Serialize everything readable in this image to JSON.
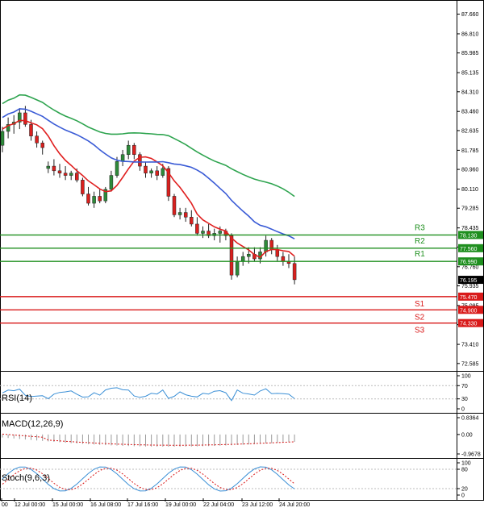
{
  "colors": {
    "bull": "#2e8b3a",
    "bear": "#d9201e",
    "ma_fast": "#e01f1f",
    "ma_mid": "#3a5bd6",
    "ma_slow": "#2ea44f",
    "resistance": "#1f8f1f",
    "support": "#d91a1a",
    "indicator": "#3a8fd6",
    "macd_signal": "#d91a1a",
    "stoch_main": "#3a8fd6",
    "stoch_signal": "#d91a1a",
    "grid": "#e6e6e6"
  },
  "price_axis": {
    "ticks": [
      "87.660",
      "86.810",
      "85.985",
      "85.135",
      "84.310",
      "83.460",
      "82.635",
      "81.785",
      "80.960",
      "80.110",
      "79.285",
      "78.435",
      "77.610",
      "76.760",
      "75.935",
      "75.085",
      "74.260",
      "73.410",
      "72.585"
    ]
  },
  "price_tags": [
    {
      "text": "78.130",
      "kind": "resistance"
    },
    {
      "text": "77.560",
      "kind": "resistance"
    },
    {
      "text": "76.990",
      "kind": "resistance"
    },
    {
      "text": "76.195",
      "kind": "current"
    },
    {
      "text": "75.470",
      "kind": "support"
    },
    {
      "text": "74.900",
      "kind": "support"
    },
    {
      "text": "74.330",
      "kind": "support"
    }
  ],
  "levels": [
    {
      "label": "R3",
      "value": 78.13,
      "kind": "resistance"
    },
    {
      "label": "R2",
      "value": 77.56,
      "kind": "resistance"
    },
    {
      "label": "R1",
      "value": 76.99,
      "kind": "resistance"
    },
    {
      "label": "S1",
      "value": 75.47,
      "kind": "support"
    },
    {
      "label": "S2",
      "value": 74.9,
      "kind": "support"
    },
    {
      "label": "S3",
      "value": 74.33,
      "kind": "support"
    }
  ],
  "time_axis": {
    "labels": [
      "00",
      "12 Jul 00:00",
      "15 Jul 00:00",
      "16 Jul 08:00",
      "17 Jul 16:00",
      "19 Jul 00:00",
      "22 Jul 04:00",
      "23 Jul 12:00",
      "24 Jul 20:00"
    ]
  },
  "panels": {
    "rsi": {
      "title": "RSI(14)",
      "ticks": [
        "100",
        "70",
        "30",
        "0"
      ]
    },
    "macd": {
      "title": "MACD(12,26,9)",
      "ticks": [
        "0.8364",
        "0.00",
        "-0.9678"
      ]
    },
    "stoch": {
      "title": "Stoch(9,6,3)",
      "ticks": [
        "100",
        "80",
        "20",
        "0"
      ]
    }
  },
  "chart_data": {
    "type": "candlestick",
    "y_range": [
      72.3,
      88.2
    ],
    "current_price": 76.195,
    "ohlc": [
      [
        82.0,
        82.8,
        81.7,
        82.6
      ],
      [
        82.6,
        83.2,
        82.3,
        82.9
      ],
      [
        82.9,
        83.3,
        82.5,
        83.0
      ],
      [
        83.0,
        83.6,
        82.7,
        83.4
      ],
      [
        83.4,
        83.7,
        82.8,
        82.9
      ],
      [
        82.9,
        83.1,
        82.2,
        82.4
      ],
      [
        82.4,
        82.6,
        81.9,
        82.1
      ],
      [
        82.1,
        82.2,
        81.6,
        81.9
      ],
      [
        81.0,
        81.3,
        80.8,
        81.1
      ],
      [
        81.1,
        81.4,
        80.7,
        80.9
      ],
      [
        80.9,
        81.2,
        80.6,
        80.8
      ],
      [
        80.8,
        81.1,
        80.5,
        80.7
      ],
      [
        80.7,
        80.9,
        80.5,
        80.8
      ],
      [
        80.8,
        81.0,
        80.4,
        80.5
      ],
      [
        80.5,
        80.6,
        79.8,
        79.9
      ],
      [
        79.9,
        80.2,
        79.4,
        79.5
      ],
      [
        79.5,
        80.0,
        79.3,
        79.8
      ],
      [
        79.8,
        80.1,
        79.5,
        79.6
      ],
      [
        79.6,
        80.2,
        79.5,
        80.1
      ],
      [
        80.1,
        80.9,
        80.0,
        80.7
      ],
      [
        80.7,
        81.5,
        80.6,
        81.3
      ],
      [
        81.3,
        81.8,
        81.1,
        81.6
      ],
      [
        81.6,
        82.2,
        81.4,
        82.0
      ],
      [
        82.0,
        82.1,
        81.4,
        81.6
      ],
      [
        81.6,
        81.7,
        80.9,
        81.1
      ],
      [
        81.1,
        81.3,
        80.6,
        80.8
      ],
      [
        80.8,
        81.0,
        80.6,
        80.9
      ],
      [
        80.9,
        81.1,
        80.5,
        80.7
      ],
      [
        80.7,
        81.2,
        80.6,
        81.0
      ],
      [
        81.0,
        81.1,
        79.6,
        79.8
      ],
      [
        79.8,
        79.9,
        78.9,
        79.0
      ],
      [
        79.0,
        79.3,
        78.8,
        79.1
      ],
      [
        79.1,
        79.3,
        78.7,
        78.9
      ],
      [
        78.9,
        79.2,
        78.5,
        78.6
      ],
      [
        78.6,
        78.9,
        78.1,
        78.2
      ],
      [
        78.2,
        78.5,
        78.0,
        78.3
      ],
      [
        78.3,
        78.6,
        78.0,
        78.1
      ],
      [
        78.1,
        78.4,
        77.9,
        78.2
      ],
      [
        78.2,
        78.5,
        77.8,
        78.3
      ],
      [
        78.3,
        78.4,
        77.9,
        78.1
      ],
      [
        78.1,
        78.2,
        76.2,
        76.4
      ],
      [
        76.4,
        77.2,
        76.3,
        77.0
      ],
      [
        77.0,
        77.4,
        76.8,
        77.2
      ],
      [
        77.2,
        77.6,
        76.9,
        77.3
      ],
      [
        77.3,
        77.6,
        77.0,
        77.1
      ],
      [
        77.1,
        77.6,
        76.9,
        77.4
      ],
      [
        77.4,
        78.1,
        77.2,
        77.9
      ],
      [
        77.9,
        78.0,
        77.3,
        77.5
      ],
      [
        77.5,
        77.7,
        77.0,
        77.2
      ],
      [
        77.2,
        77.4,
        76.8,
        77.0
      ],
      [
        77.0,
        77.3,
        76.7,
        76.9
      ],
      [
        76.9,
        77.2,
        76.0,
        76.2
      ]
    ]
  }
}
